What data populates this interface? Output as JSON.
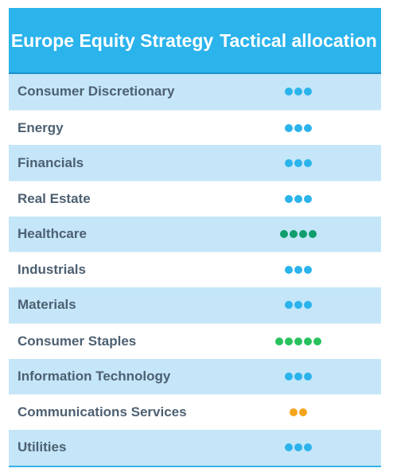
{
  "table": {
    "header": {
      "sector_title": "Europe Equity Strategy",
      "allocation_title": "Tactical allocation"
    },
    "colors": {
      "header_bg": "#2bb3ec",
      "row_shade": "#c4e6f8",
      "dot_blue": "#2bb3ec",
      "dot_dark_green": "#0f9e6c",
      "dot_green": "#28c25c",
      "dot_orange": "#f5a51d"
    },
    "rows": [
      {
        "sector": "Consumer Discretionary",
        "dots": 3,
        "dot_color": "#2bb3ec",
        "icon": "three-blue-dots-icon"
      },
      {
        "sector": "Energy",
        "dots": 3,
        "dot_color": "#2bb3ec",
        "icon": "three-blue-dots-icon"
      },
      {
        "sector": "Financials",
        "dots": 3,
        "dot_color": "#2bb3ec",
        "icon": "three-blue-dots-icon"
      },
      {
        "sector": "Real Estate",
        "dots": 3,
        "dot_color": "#2bb3ec",
        "icon": "three-blue-dots-icon"
      },
      {
        "sector": "Healthcare",
        "dots": 4,
        "dot_color": "#0f9e6c",
        "icon": "four-dark-green-dots-icon"
      },
      {
        "sector": "Industrials",
        "dots": 3,
        "dot_color": "#2bb3ec",
        "icon": "three-blue-dots-icon"
      },
      {
        "sector": "Materials",
        "dots": 3,
        "dot_color": "#2bb3ec",
        "icon": "three-blue-dots-icon"
      },
      {
        "sector": "Consumer Staples",
        "dots": 5,
        "dot_color": "#28c25c",
        "icon": "five-green-dots-icon"
      },
      {
        "sector": "Information Technology",
        "dots": 3,
        "dot_color": "#2bb3ec",
        "icon": "three-blue-dots-icon"
      },
      {
        "sector": "Communications Services",
        "dots": 2,
        "dot_color": "#f5a51d",
        "icon": "two-orange-dots-icon"
      },
      {
        "sector": "Utilities",
        "dots": 3,
        "dot_color": "#2bb3ec",
        "icon": "three-blue-dots-icon"
      }
    ]
  }
}
